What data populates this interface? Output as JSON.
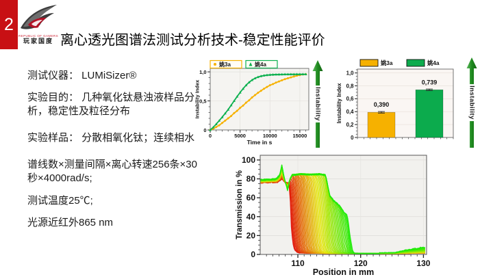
{
  "slide": {
    "number": "2",
    "title": "离心透光图谱法测试分析技术-稳定性能评价",
    "logo": {
      "line1": "REPUBLIC OF GAMERS",
      "line2": "玩家国度"
    }
  },
  "info_panel": {
    "lines": [
      "测试仪器： LUMiSizer®",
      "实验目的： 几种氧化钛悬浊液样品分析，稳定性及粒径分布",
      "实验样品： 分散相氧化钛；连续相水",
      "谱线数×测量间隔×离心转速256条×30秒×4000rad/s;",
      "测试温度25℃;",
      "光源近红外865 nm"
    ]
  },
  "annotations": {
    "arrow_label": "Instability",
    "arrow_color": "#1f8a1f"
  },
  "chart_data": [
    {
      "id": "instability-vs-time",
      "type": "line",
      "xlabel": "Time in s",
      "ylabel": "Instability Index",
      "xlim": [
        0,
        16500
      ],
      "ylim": [
        0,
        1.06
      ],
      "xticks": [
        0,
        5000,
        10000,
        15000
      ],
      "x_minor_step": 1000,
      "yticks": [
        {
          "v": 0,
          "label": "0"
        },
        {
          "v": 0.5,
          "label": "0,5"
        },
        {
          "v": 1.0,
          "label": "1,0"
        }
      ],
      "y_minor_step": 0.1,
      "grid": true,
      "legend_position": "top",
      "x_start": 0,
      "x_step": 500,
      "series": [
        {
          "name": "姚3a",
          "color": "#f6b100",
          "marker": "circle",
          "values": [
            0,
            0.02,
            0.05,
            0.08,
            0.12,
            0.16,
            0.2,
            0.24,
            0.29,
            0.33,
            0.38,
            0.42,
            0.47,
            0.51,
            0.56,
            0.6,
            0.64,
            0.675,
            0.71,
            0.74,
            0.77,
            0.79,
            0.815,
            0.835,
            0.855,
            0.875,
            0.89,
            0.905,
            0.92,
            0.935,
            0.945,
            0.955,
            0.96
          ]
        },
        {
          "name": "姚4a",
          "color": "#0cb04f",
          "marker": "triangle",
          "values": [
            0,
            0.045,
            0.1,
            0.16,
            0.22,
            0.285,
            0.35,
            0.425,
            0.5,
            0.575,
            0.645,
            0.71,
            0.77,
            0.82,
            0.86,
            0.89,
            0.912,
            0.928,
            0.938,
            0.945,
            0.95,
            0.953,
            0.955,
            0.956,
            0.957,
            0.958,
            0.958,
            0.959,
            0.959,
            0.96,
            0.96,
            0.96,
            0.96
          ]
        }
      ]
    },
    {
      "id": "instability-index-bars",
      "type": "bar",
      "ylabel": "Instability Index",
      "categories": [
        "姚3a",
        "姚4a"
      ],
      "values": [
        0.39,
        0.739
      ],
      "value_labels": [
        "0,390",
        "0,739"
      ],
      "colors": [
        "#f6b100",
        "#0cab4d"
      ],
      "error": 0.012,
      "ylim": [
        0,
        1.06
      ],
      "yticks": [
        {
          "v": 0,
          "label": "0"
        },
        {
          "v": 0.2,
          "label": "0,2"
        },
        {
          "v": 0.4,
          "label": "0,4"
        },
        {
          "v": 0.6,
          "label": "0,6"
        },
        {
          "v": 0.8,
          "label": "0,8"
        },
        {
          "v": 1.0,
          "label": "1,0"
        }
      ],
      "y_minor_step": 0.05,
      "grid": true,
      "legend_position": "top"
    },
    {
      "id": "transmission-profiles",
      "type": "line-family",
      "xlabel": "Position in mm",
      "ylabel": "Transmission in %",
      "xlim": [
        104,
        130.5
      ],
      "ylim": [
        0,
        105
      ],
      "xticks": [
        110,
        120,
        130
      ],
      "x_minor_step": 1,
      "yticks": [
        0,
        20,
        40,
        60,
        80,
        100
      ],
      "y_minor_step": 5,
      "profiles": 70,
      "color_first": "#e51400",
      "color_last": "#27cc00",
      "front": {
        "start": 108.8,
        "travel": 9.8,
        "exponent": 1.15,
        "width": 0.22
      },
      "first_profile": [
        [
          104,
          76
        ],
        [
          106.8,
          76.5
        ],
        [
          107.45,
          80
        ],
        [
          108.0,
          76
        ],
        [
          108.5,
          75.5
        ],
        [
          108.75,
          40
        ],
        [
          108.95,
          2
        ],
        [
          110,
          1.6
        ],
        [
          114,
          1.3
        ],
        [
          118,
          1.2
        ],
        [
          123,
          1.0
        ],
        [
          127,
          1.2
        ],
        [
          130.4,
          1.5
        ]
      ],
      "last_profile": [
        [
          104,
          79
        ],
        [
          106.5,
          80
        ],
        [
          107.1,
          84
        ],
        [
          107.45,
          95
        ],
        [
          107.8,
          82
        ],
        [
          108.35,
          68
        ],
        [
          108.7,
          79
        ],
        [
          109.1,
          84
        ],
        [
          110.5,
          85
        ],
        [
          112,
          84.5
        ],
        [
          113.5,
          85
        ],
        [
          114.4,
          84
        ],
        [
          115.1,
          62
        ],
        [
          115.7,
          57
        ],
        [
          116.6,
          52
        ],
        [
          117.1,
          47
        ],
        [
          117.9,
          42
        ],
        [
          118.4,
          22
        ],
        [
          118.9,
          6
        ],
        [
          119.6,
          2.5
        ],
        [
          122,
          1.6
        ],
        [
          125.5,
          2
        ],
        [
          127,
          4.5
        ],
        [
          128.5,
          6
        ],
        [
          130.4,
          8
        ]
      ]
    }
  ]
}
